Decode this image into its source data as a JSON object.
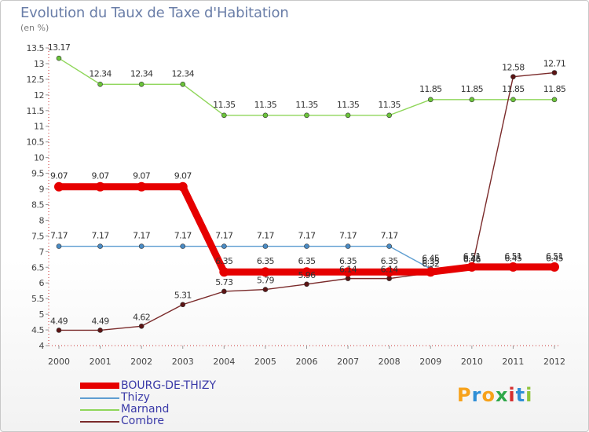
{
  "chart_data": {
    "type": "line",
    "title": "Evolution du Taux de Taxe d'Habitation",
    "subtitle": "(en %)",
    "xlabel": "",
    "ylabel": "",
    "ylim": [
      4,
      13.5
    ],
    "y_ticks": [
      "4",
      "4.5",
      "5",
      "5.5",
      "6",
      "6.5",
      "7",
      "7.5",
      "8",
      "8.5",
      "9",
      "9.5",
      "10",
      "10.5",
      "11",
      "11.5",
      "12",
      "12.5",
      "13",
      "13.5"
    ],
    "y_tick_values": [
      4,
      4.5,
      5,
      5.5,
      6,
      6.5,
      7,
      7.5,
      8,
      8.5,
      9,
      9.5,
      10,
      10.5,
      11,
      11.5,
      12,
      12.5,
      13,
      13.5
    ],
    "x": [
      "2000",
      "2001",
      "2002",
      "2003",
      "2004",
      "2005",
      "2006",
      "2007",
      "2008",
      "2009",
      "2010",
      "2011",
      "2012"
    ],
    "series": [
      {
        "name": "Marnand",
        "color": "#8fd65a",
        "marker_color": "#6bc43a",
        "values": [
          13.17,
          12.34,
          12.34,
          12.34,
          11.35,
          11.35,
          11.35,
          11.35,
          11.35,
          11.85,
          11.85,
          11.85,
          11.85
        ],
        "labels": [
          "13.17",
          "12.34",
          "12.34",
          "12.34",
          "11.35",
          "11.35",
          "11.35",
          "11.35",
          "11.35",
          "11.85",
          "11.85",
          "11.85",
          "11.85"
        ]
      },
      {
        "name": "Thizy",
        "color": "#5f9ed1",
        "marker_color": "#4a8bc4",
        "values": [
          7.17,
          7.17,
          7.17,
          7.17,
          7.17,
          7.17,
          7.17,
          7.17,
          7.17,
          6.45,
          6.45,
          6.45,
          6.45
        ],
        "labels": [
          "7.17",
          "7.17",
          "7.17",
          "7.17",
          "7.17",
          "7.17",
          "7.17",
          "7.17",
          "7.17",
          "6.45",
          "6.45",
          "6.45",
          "6.45"
        ]
      },
      {
        "name": "Combre",
        "color": "#7a2a2a",
        "marker_color": "#5c1414",
        "values": [
          4.49,
          4.49,
          4.62,
          5.31,
          5.73,
          5.79,
          5.96,
          6.14,
          6.14,
          6.32,
          6.46,
          12.58,
          12.71
        ],
        "labels": [
          "4.49",
          "4.49",
          "4.62",
          "5.31",
          "5.73",
          "5.79",
          "5.96",
          "6.14",
          "6.14",
          "6.32",
          "6.46",
          "12.58",
          "12.71"
        ]
      },
      {
        "name": "BOURG-DE-THIZY",
        "color": "#e60000",
        "marker_color": "#e60000",
        "values": [
          9.07,
          9.07,
          9.07,
          9.07,
          6.35,
          6.35,
          6.35,
          6.35,
          6.35,
          6.35,
          6.51,
          6.51,
          6.51
        ],
        "labels": [
          "9.07",
          "9.07",
          "9.07",
          "9.07",
          "6.35",
          "6.35",
          "6.35",
          "6.35",
          "6.35",
          "6.35",
          "6.51",
          "6.51",
          "6.51"
        ]
      }
    ]
  },
  "legend": {
    "items": [
      {
        "name": "BOURG-DE-THIZY",
        "color": "#e60000"
      },
      {
        "name": "Thizy",
        "color": "#5f9ed1"
      },
      {
        "name": "Marnand",
        "color": "#8fd65a"
      },
      {
        "name": "Combre",
        "color": "#7a2a2a"
      }
    ]
  },
  "logo": {
    "letters": [
      "P",
      "r",
      "o",
      "x",
      "i",
      "t",
      "i"
    ],
    "colors": [
      "#f7a21b",
      "#2f8fd6",
      "#f7a21b",
      "#2fa84a",
      "#d62f2f",
      "#2f8fd6",
      "#8fc43a"
    ]
  }
}
